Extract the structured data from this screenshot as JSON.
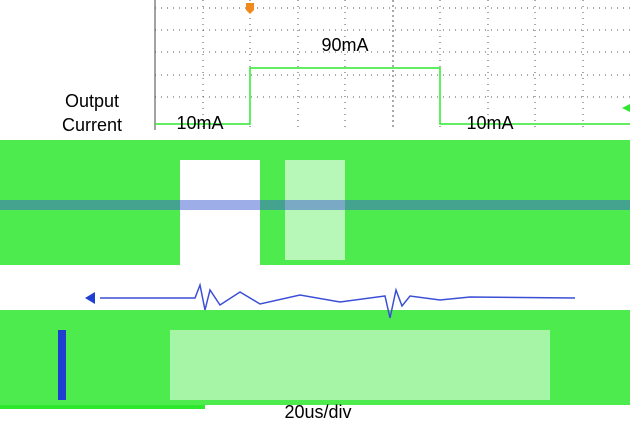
{
  "scope": {
    "trace_label_line1": "Output",
    "trace_label_line2": "Current",
    "pulse_level": "90mA",
    "base_level_left": "10mA",
    "base_level_right": "10mA",
    "timebase": "20us/div"
  }
}
